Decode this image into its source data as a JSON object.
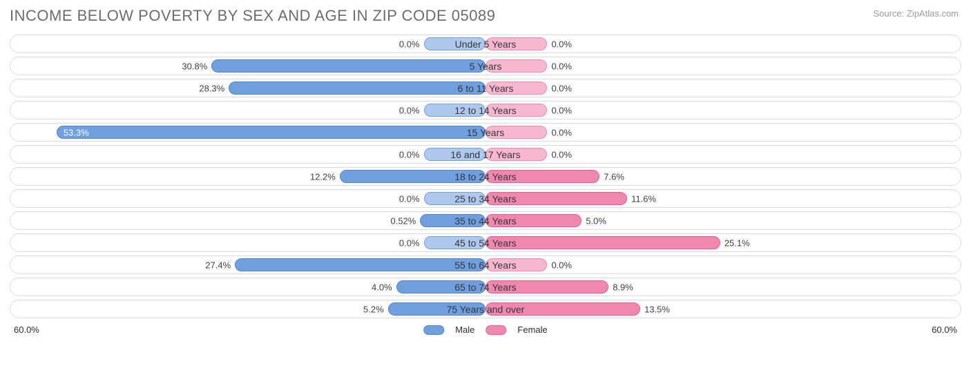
{
  "title_text": "INCOME BELOW POVERTY BY SEX AND AGE IN ZIP CODE 05089",
  "source_text": "Source: ZipAtlas.com",
  "chart": {
    "type": "diverging-bar",
    "center_half_pct": 6.5,
    "axis_max": 60.0,
    "axis_max_label": "60.0%",
    "male": {
      "bg_fill": "#aec9ed",
      "bg_stroke": "#6f9fde",
      "bar_fill": "#6f9fde",
      "bar_stroke": "#4d86d2"
    },
    "female": {
      "bg_fill": "#f7b7ce",
      "bg_stroke": "#ef87af",
      "bar_fill": "#ef87af",
      "bar_stroke": "#e75d93"
    },
    "track_border": "#dcdcdc",
    "value_text_color": "#404040",
    "rows": [
      {
        "label": "Under 5 Years",
        "male": 0.0,
        "male_label": "0.0%",
        "female": 0.0,
        "female_label": "0.0%"
      },
      {
        "label": "5 Years",
        "male": 30.8,
        "male_label": "30.8%",
        "female": 0.0,
        "female_label": "0.0%"
      },
      {
        "label": "6 to 11 Years",
        "male": 28.3,
        "male_label": "28.3%",
        "female": 0.0,
        "female_label": "0.0%"
      },
      {
        "label": "12 to 14 Years",
        "male": 0.0,
        "male_label": "0.0%",
        "female": 0.0,
        "female_label": "0.0%"
      },
      {
        "label": "15 Years",
        "male": 53.3,
        "male_label": "53.3%",
        "female": 0.0,
        "female_label": "0.0%"
      },
      {
        "label": "16 and 17 Years",
        "male": 0.0,
        "male_label": "0.0%",
        "female": 0.0,
        "female_label": "0.0%"
      },
      {
        "label": "18 to 24 Years",
        "male": 12.2,
        "male_label": "12.2%",
        "female": 7.6,
        "female_label": "7.6%"
      },
      {
        "label": "25 to 34 Years",
        "male": 0.0,
        "male_label": "0.0%",
        "female": 11.6,
        "female_label": "11.6%"
      },
      {
        "label": "35 to 44 Years",
        "male": 0.52,
        "male_label": "0.52%",
        "female": 5.0,
        "female_label": "5.0%"
      },
      {
        "label": "45 to 54 Years",
        "male": 0.0,
        "male_label": "0.0%",
        "female": 25.1,
        "female_label": "25.1%"
      },
      {
        "label": "55 to 64 Years",
        "male": 27.4,
        "male_label": "27.4%",
        "female": 0.0,
        "female_label": "0.0%"
      },
      {
        "label": "65 to 74 Years",
        "male": 4.0,
        "male_label": "4.0%",
        "female": 8.9,
        "female_label": "8.9%"
      },
      {
        "label": "75 Years and over",
        "male": 5.2,
        "male_label": "5.2%",
        "female": 13.5,
        "female_label": "13.5%"
      }
    ],
    "legend": {
      "male": "Male",
      "female": "Female"
    }
  }
}
